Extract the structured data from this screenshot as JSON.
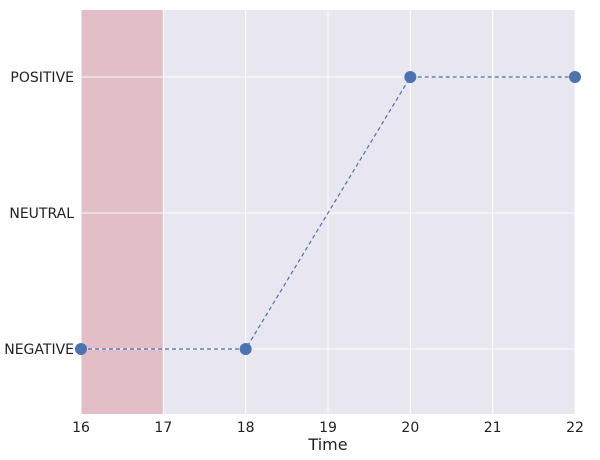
{
  "chart_data": {
    "type": "line",
    "title": "",
    "xlabel": "Time",
    "ylabel": "",
    "xlim": [
      16,
      22
    ],
    "x_ticks": [
      16,
      17,
      18,
      19,
      20,
      21,
      22
    ],
    "y_categories": [
      "NEGATIVE",
      "NEUTRAL",
      "POSITIVE"
    ],
    "grid": true,
    "series": [
      {
        "x": [
          16,
          18,
          20,
          22
        ],
        "y": [
          "NEGATIVE",
          "NEGATIVE",
          "POSITIVE",
          "POSITIVE"
        ],
        "line_style": "dashed",
        "color": "#4c72b0"
      }
    ],
    "highlight_span": {
      "x_start": 16,
      "x_end": 17,
      "color": "#e2bfc7"
    },
    "colors": {
      "plot_background": "#e8e7ef",
      "grid": "#ffffff",
      "series": "#4c72b0"
    }
  }
}
